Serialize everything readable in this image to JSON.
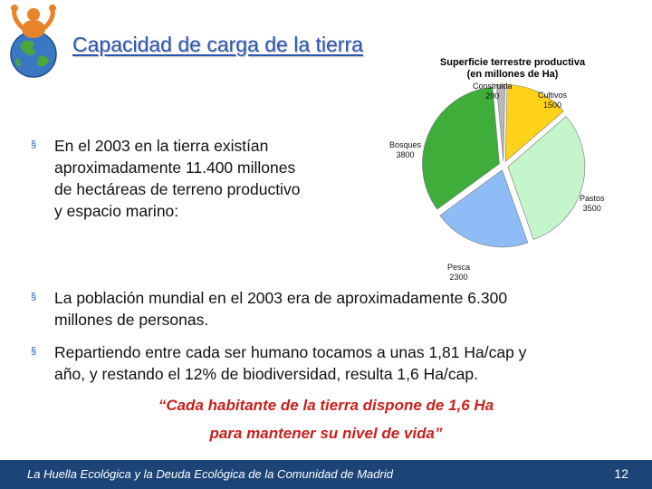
{
  "slide": {
    "title": "Capacidad de carga de la tierra",
    "bullets": [
      {
        "lines": [
          "En el 2003 en la tierra existían",
          "aproximadamente 11.400 millones",
          "de hectáreas de terreno productivo",
          "y espacio marino:"
        ]
      },
      {
        "lines": [
          "La población mundial en el 2003 era de aproximadamente 6.300",
          "millones de personas."
        ]
      },
      {
        "lines": [
          "Repartiendo entre cada ser humano tocamos a unas 1,81 Ha/cap y",
          "año, y restando el 12% de biodiversidad, resulta 1,6 Ha/cap."
        ]
      }
    ],
    "quote": [
      "“Cada habitante de la tierra dispone de 1,6 Ha",
      "para mantener su nivel de vida”"
    ],
    "footer": "La Huella Ecológica y la Deuda Ecológica de la Comunidad de Madrid",
    "page_number": "12",
    "bullet_glyph": "§",
    "colors": {
      "title": "#2a56b0",
      "quote": "#c8201c",
      "footer_bg": "#1d4477"
    },
    "logo_icon": "earth-figure-icon"
  },
  "chart_data": {
    "type": "pie",
    "title": [
      "Superficie terrestre productiva",
      "(en millones de Ha)"
    ],
    "categories": [
      "Construida",
      "Cultivos",
      "Pastos",
      "Pesca",
      "Bosques"
    ],
    "values": [
      200,
      1500,
      3500,
      2300,
      3800
    ],
    "value_labels": [
      "200",
      "1500",
      "3500",
      "2300",
      "3800"
    ],
    "colors": [
      "#b8b8b8",
      "#ffd21a",
      "#c4f5cb",
      "#8ebcf6",
      "#3ead3a"
    ],
    "exploded": true,
    "legend": "none"
  }
}
